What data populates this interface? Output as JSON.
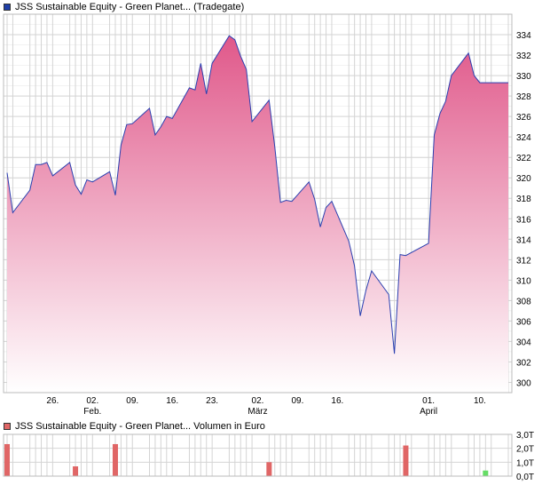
{
  "colors": {
    "line": "#2a3fb0",
    "area_top": "#e0588a",
    "area_bottom": "#ffffff",
    "volume_neg": "#e06666",
    "volume_pos": "#66dd66",
    "grid": "#d4d4d4",
    "legend_price_swatch": "#1f3fa8",
    "legend_volume_swatch": "#e06666"
  },
  "chart_data": [
    {
      "type": "area",
      "title": "JSS Sustainable Equity - Green Planet... (Tradegate)",
      "ylim": [
        299,
        336
      ],
      "yticks": [
        300,
        302,
        304,
        306,
        308,
        310,
        312,
        314,
        316,
        318,
        320,
        322,
        324,
        326,
        328,
        330,
        332,
        334
      ],
      "x_date_range": [
        "2024-01-18",
        "2024-04-15"
      ],
      "x_ticks": [
        {
          "date": "2024-01-26",
          "label": "26.",
          "sub": ""
        },
        {
          "date": "2024-02-02",
          "label": "02.",
          "sub": "Feb."
        },
        {
          "date": "2024-02-09",
          "label": "09.",
          "sub": ""
        },
        {
          "date": "2024-02-16",
          "label": "16.",
          "sub": ""
        },
        {
          "date": "2024-02-23",
          "label": "23.",
          "sub": ""
        },
        {
          "date": "2024-03-02",
          "label": "02.",
          "sub": "März"
        },
        {
          "date": "2024-03-09",
          "label": "09.",
          "sub": ""
        },
        {
          "date": "2024-03-16",
          "label": "16.",
          "sub": ""
        },
        {
          "date": "2024-04-01",
          "label": "01.",
          "sub": "April"
        },
        {
          "date": "2024-04-10",
          "label": "10.",
          "sub": ""
        }
      ],
      "x": [
        "2024-01-18",
        "2024-01-19",
        "2024-01-22",
        "2024-01-23",
        "2024-01-24",
        "2024-01-25",
        "2024-01-26",
        "2024-01-29",
        "2024-01-30",
        "2024-01-31",
        "2024-02-01",
        "2024-02-02",
        "2024-02-05",
        "2024-02-06",
        "2024-02-07",
        "2024-02-08",
        "2024-02-09",
        "2024-02-12",
        "2024-02-13",
        "2024-02-14",
        "2024-02-15",
        "2024-02-16",
        "2024-02-19",
        "2024-02-20",
        "2024-02-21",
        "2024-02-22",
        "2024-02-23",
        "2024-02-26",
        "2024-02-27",
        "2024-02-28",
        "2024-02-29",
        "2024-03-01",
        "2024-03-04",
        "2024-03-05",
        "2024-03-06",
        "2024-03-07",
        "2024-03-08",
        "2024-03-11",
        "2024-03-12",
        "2024-03-13",
        "2024-03-14",
        "2024-03-15",
        "2024-03-18",
        "2024-03-19",
        "2024-03-20",
        "2024-03-21",
        "2024-03-22",
        "2024-03-25",
        "2024-03-26",
        "2024-03-27",
        "2024-03-28",
        "2024-04-01",
        "2024-04-02",
        "2024-04-03",
        "2024-04-04",
        "2024-04-05",
        "2024-04-08",
        "2024-04-09",
        "2024-04-10",
        "2024-04-11",
        "2024-04-12",
        "2024-04-15"
      ],
      "values": [
        320.5,
        316.6,
        318.8,
        321.3,
        321.3,
        321.5,
        320.2,
        321.5,
        319.3,
        318.4,
        319.8,
        319.6,
        320.6,
        318.3,
        323.2,
        325.2,
        325.3,
        326.8,
        324.2,
        325.0,
        326.0,
        325.8,
        328.8,
        328.6,
        331.2,
        328.2,
        331.2,
        333.9,
        333.5,
        331.9,
        330.6,
        325.5,
        327.6,
        323.0,
        317.6,
        317.8,
        317.7,
        319.6,
        317.9,
        315.2,
        317.1,
        317.7,
        313.8,
        311.4,
        306.5,
        309.0,
        310.9,
        308.6,
        302.8,
        312.5,
        312.4,
        313.6,
        324.2,
        326.3,
        327.5,
        330.0,
        332.2,
        330.0,
        329.3,
        329.3,
        329.3,
        329.3
      ],
      "grid": true
    },
    {
      "type": "bar",
      "title": "JSS Sustainable Equity - Green Planet... Volumen in Euro",
      "ylim": [
        0,
        3
      ],
      "yticks": [
        {
          "value": 0,
          "label": "0,0T"
        },
        {
          "value": 1,
          "label": "1,0T"
        },
        {
          "value": 2,
          "label": "2,0T"
        },
        {
          "value": 3,
          "label": "3,0T"
        }
      ],
      "bars": [
        {
          "date": "2024-01-18",
          "value": 2.3,
          "direction": "down"
        },
        {
          "date": "2024-01-30",
          "value": 0.7,
          "direction": "down"
        },
        {
          "date": "2024-02-06",
          "value": 2.3,
          "direction": "down"
        },
        {
          "date": "2024-03-04",
          "value": 1.0,
          "direction": "down"
        },
        {
          "date": "2024-03-28",
          "value": 2.2,
          "direction": "down"
        },
        {
          "date": "2024-04-11",
          "value": 0.4,
          "direction": "up"
        }
      ],
      "grid": true
    }
  ]
}
